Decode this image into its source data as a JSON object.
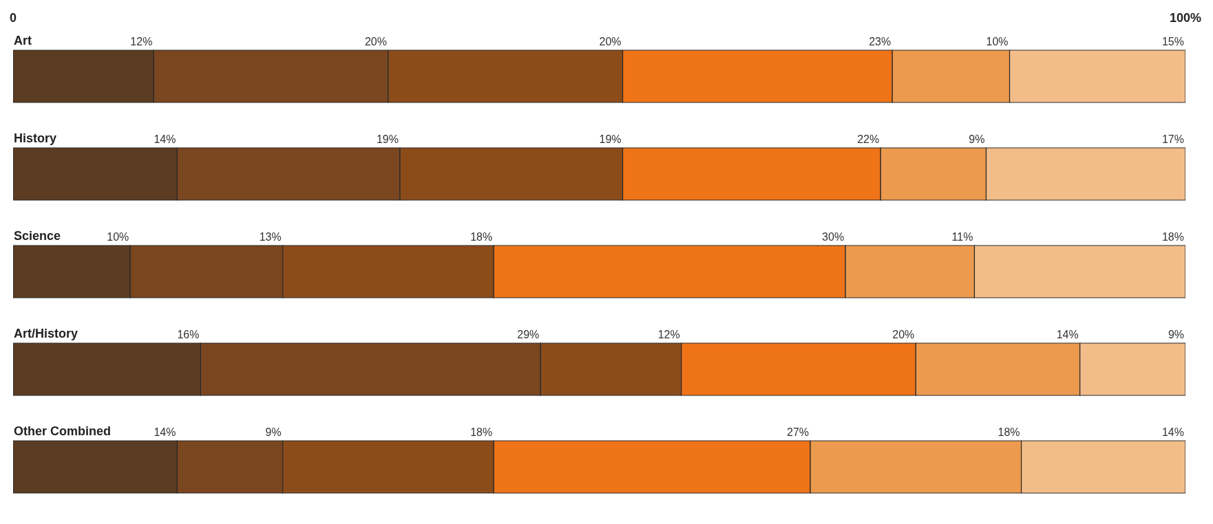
{
  "chart_data": {
    "type": "bar",
    "orientation": "horizontal",
    "stacked": true,
    "categories": [
      "Art",
      "History",
      "Science",
      "Art/History",
      "Other Combined"
    ],
    "xlim": [
      0,
      100
    ],
    "xticks": [
      0,
      {
        "value": 100,
        "label": "100%"
      }
    ],
    "series": [
      {
        "color": "#5b3c22",
        "values": [
          12,
          14,
          10,
          16,
          14
        ],
        "value_labels": [
          "12%",
          "14%",
          "10%",
          "16%",
          "14%"
        ]
      },
      {
        "color": "#7a4620",
        "values": [
          20,
          19,
          13,
          29,
          9
        ],
        "value_labels": [
          "20%",
          "19%",
          "13%",
          "29%",
          "9%"
        ]
      },
      {
        "color": "#8c4c1a",
        "values": [
          20,
          19,
          18,
          12,
          18
        ],
        "value_labels": [
          "20%",
          "19%",
          "18%",
          "12%",
          "18%"
        ]
      },
      {
        "color": "#ef7418",
        "values": [
          23,
          22,
          30,
          20,
          27
        ],
        "value_labels": [
          "23%",
          "22%",
          "30%",
          "20%",
          "27%"
        ]
      },
      {
        "color": "#eb9a4e",
        "values": [
          10,
          9,
          11,
          14,
          18
        ],
        "value_labels": [
          "10%",
          "9%",
          "11%",
          "14%",
          "18%"
        ]
      },
      {
        "color": "#f3bd8a",
        "values": [
          15,
          17,
          18,
          9,
          14
        ],
        "value_labels": [
          "15%",
          "17%",
          "18%",
          "9%",
          "14%"
        ]
      }
    ]
  }
}
